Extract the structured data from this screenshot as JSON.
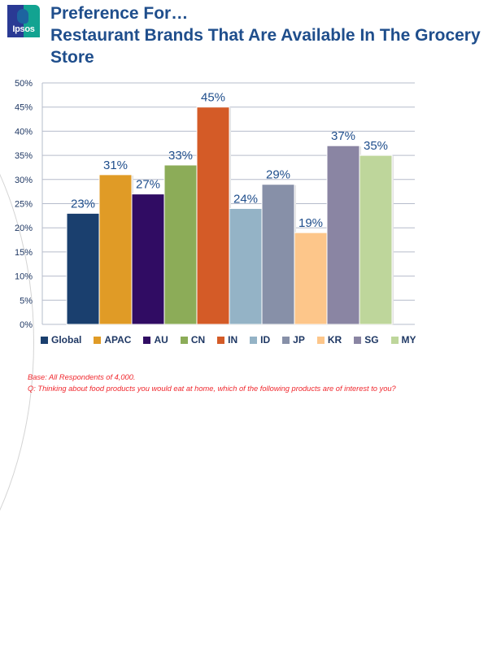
{
  "logo": {
    "text": "Ipsos"
  },
  "header": {
    "title_line1": "Preference For…",
    "title_line2": "Restaurant Brands That Are Available In The Grocery Store"
  },
  "chart_data": {
    "type": "bar",
    "title": "Preference For… Restaurant Brands That Are Available In The Grocery Store",
    "xlabel": "",
    "ylabel": "",
    "ylim": [
      0,
      50
    ],
    "yticks": [
      0,
      5,
      10,
      15,
      20,
      25,
      30,
      35,
      40,
      45,
      50
    ],
    "ytick_labels": [
      "0%",
      "5%",
      "10%",
      "15%",
      "20%",
      "25%",
      "30%",
      "35%",
      "40%",
      "45%",
      "50%"
    ],
    "grid": true,
    "legend_position": "bottom",
    "categories": [
      "Global",
      "APAC",
      "AU",
      "CN",
      "IN",
      "ID",
      "JP",
      "KR",
      "SG",
      "MY"
    ],
    "values": [
      23,
      31,
      27,
      33,
      45,
      24,
      29,
      19,
      37,
      35
    ],
    "data_labels": [
      "23%",
      "31%",
      "27%",
      "33%",
      "45%",
      "24%",
      "29%",
      "19%",
      "37%",
      "35%"
    ],
    "colors": [
      "#1a3f6e",
      "#e09b26",
      "#300c63",
      "#8cac58",
      "#d45b27",
      "#94b3c6",
      "#8790a8",
      "#fdc68a",
      "#8a85a3",
      "#bed69b"
    ]
  },
  "legend": [
    {
      "label": "Global",
      "color": "#1a3f6e"
    },
    {
      "label": "APAC",
      "color": "#e09b26"
    },
    {
      "label": "AU",
      "color": "#300c63"
    },
    {
      "label": "CN",
      "color": "#8cac58"
    },
    {
      "label": "IN",
      "color": "#d45b27"
    },
    {
      "label": "ID",
      "color": "#94b3c6"
    },
    {
      "label": "JP",
      "color": "#8790a8"
    },
    {
      "label": "KR",
      "color": "#fdc68a"
    },
    {
      "label": "SG",
      "color": "#8a85a3"
    },
    {
      "label": "MY",
      "color": "#bed69b"
    }
  ],
  "footnote": {
    "base": "Base: All Respondents  of 4,000.",
    "question": "Q: Thinking about food products you would eat at home, which of the following products are of interest to you?"
  }
}
